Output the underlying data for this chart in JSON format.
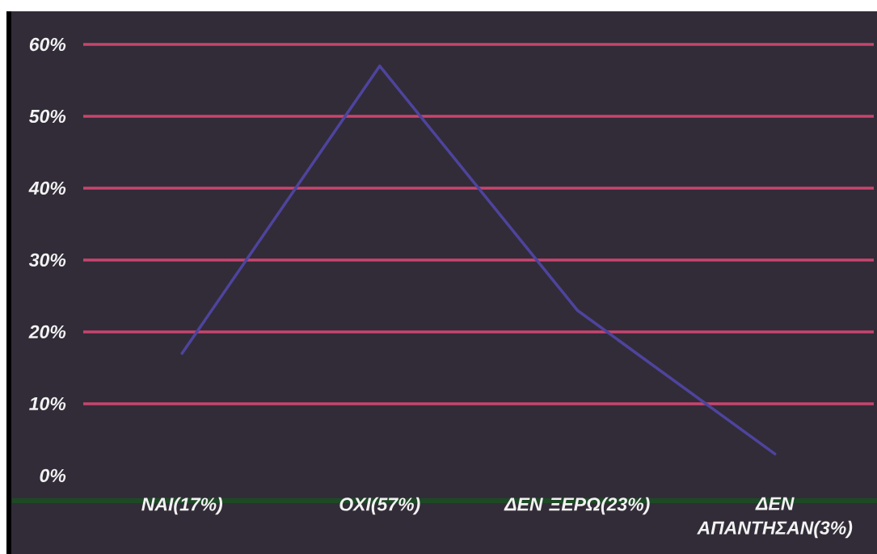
{
  "chart_data": {
    "type": "line",
    "categories": [
      "ΝΑΙ(17%)",
      "ΟΧΙ(57%)",
      "ΔΕΝ ΞΕΡΩ(23%)",
      "ΔΕΝ ΑΠΑΝΤΗΣΑΝ(3%)"
    ],
    "series": [
      {
        "color": "#4e449e",
        "values": [
          17,
          57,
          23,
          3
        ]
      }
    ],
    "ylim": [
      -3.5,
      60
    ],
    "yticks": [
      {
        "value": 0,
        "label": "0%"
      },
      {
        "value": 10,
        "label": "10%"
      },
      {
        "value": 20,
        "label": "20%"
      },
      {
        "value": 30,
        "label": "30%"
      },
      {
        "value": 40,
        "label": "40%"
      },
      {
        "value": 50,
        "label": "50%"
      },
      {
        "value": 60,
        "label": "60%"
      }
    ],
    "grid": "y",
    "marker": "none",
    "line_style": "solid"
  }
}
